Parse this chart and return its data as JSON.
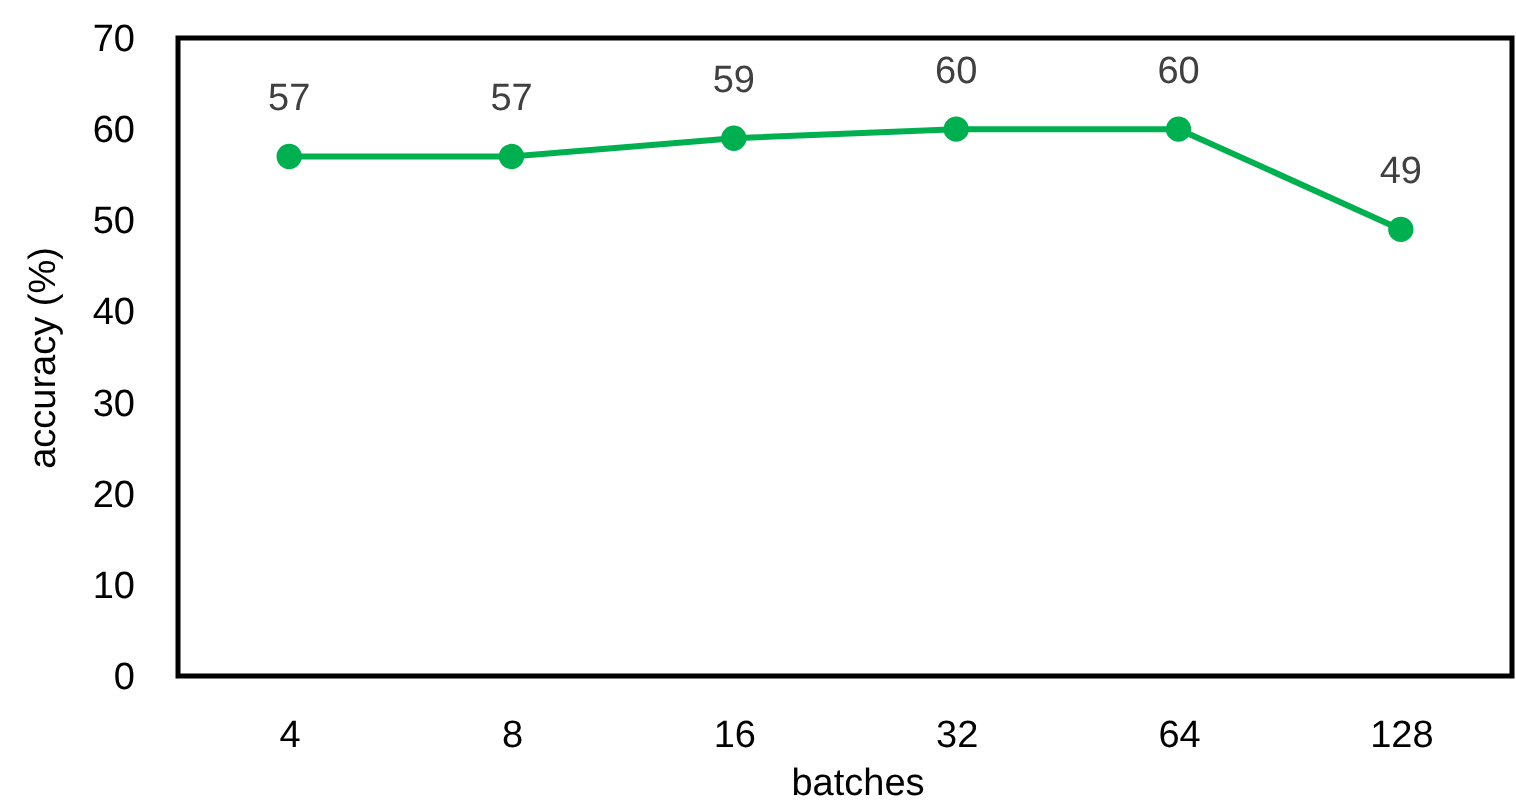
{
  "chart_data": {
    "type": "line",
    "xlabel": "batches",
    "ylabel": "accuracy (%)",
    "categories": [
      "4",
      "8",
      "16",
      "32",
      "64",
      "128"
    ],
    "series": [
      {
        "color": "#00b050",
        "values": [
          57,
          57,
          59,
          60,
          60,
          49
        ]
      }
    ],
    "ylim": [
      0,
      70
    ],
    "yticks": [
      0,
      10,
      20,
      30,
      40,
      50,
      60,
      70
    ],
    "marker": "circle",
    "line_style": "solid",
    "data_labels": true
  }
}
